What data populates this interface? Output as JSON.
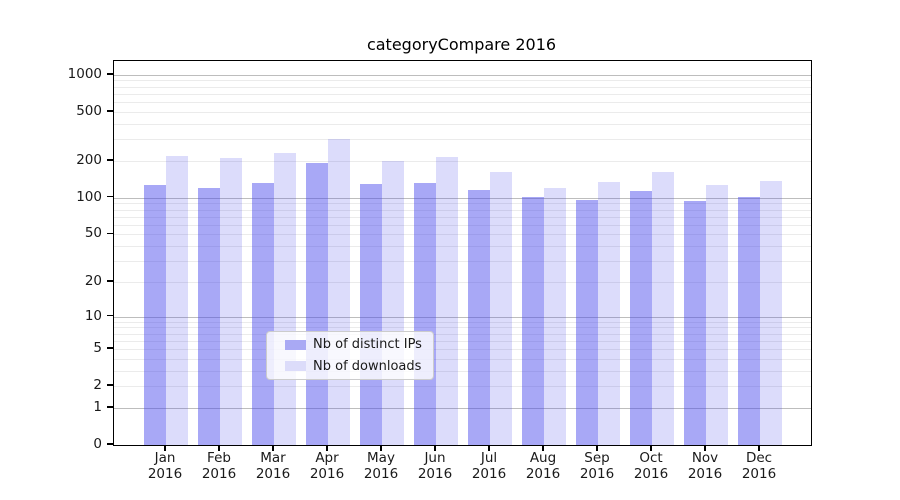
{
  "title": "categoryCompare 2016",
  "chart_data": {
    "type": "bar",
    "title": "categoryCompare 2016",
    "x": {
      "categories": [
        "Jan",
        "Feb",
        "Mar",
        "Apr",
        "May",
        "Jun",
        "Jul",
        "Aug",
        "Sep",
        "Oct",
        "Nov",
        "Dec"
      ],
      "year_label": "2016"
    },
    "y_axis": {
      "scale": "log1p",
      "ticks": [
        1000,
        500,
        200,
        100,
        50,
        20,
        10,
        5,
        2,
        1,
        0
      ],
      "ylim": [
        0,
        1290
      ],
      "grid": "on"
    },
    "series": [
      {
        "name": "Nb of distinct IPs",
        "fill": "rgba(70,70,235,0.47)",
        "swatch": "#a9a9f4",
        "values": [
          126,
          121,
          131,
          191,
          130,
          131,
          115,
          102,
          95,
          113,
          94,
          102
        ]
      },
      {
        "name": "Nb of downloads",
        "fill": "rgba(70,70,235,0.19)",
        "swatch": "#dcdcfa",
        "values": [
          220,
          210,
          230,
          300,
          198,
          214,
          161,
          121,
          135,
          163,
          128,
          137
        ]
      }
    ],
    "legend": {
      "position": "lower center inside",
      "entries": [
        "Nb of distinct IPs",
        "Nb of downloads"
      ]
    }
  },
  "colors": {
    "bar_dark": "#a9a9f4",
    "bar_light": "#dcdcfa",
    "grid_major": "#bdbdbd",
    "grid_minor": "#ebebeb",
    "axis": "#000000",
    "text": "#1a1a1a"
  }
}
